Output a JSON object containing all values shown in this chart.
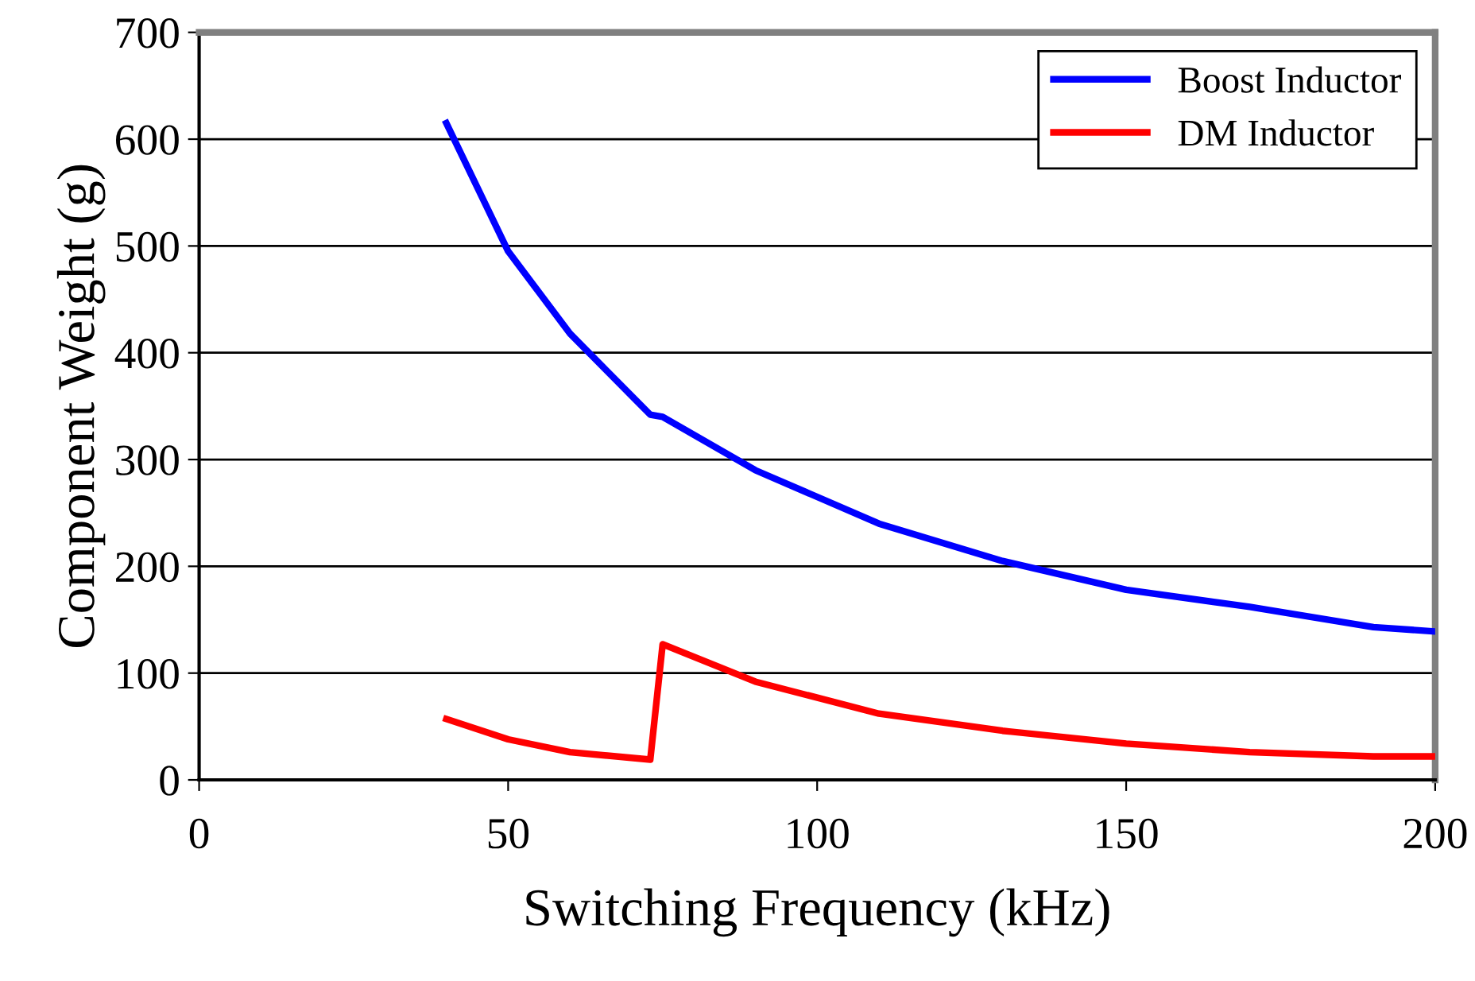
{
  "chart_data": {
    "type": "line",
    "xlabel": "Switching Frequency (kHz)",
    "ylabel": "Component Weight (g)",
    "xlim": [
      0,
      200
    ],
    "xticks": [
      0,
      50,
      100,
      150,
      200
    ],
    "ylim": [
      0,
      700
    ],
    "yticks": [
      0,
      100,
      200,
      300,
      400,
      500,
      600,
      700
    ],
    "grid": "y",
    "legend": "top right",
    "marker": "none",
    "line_style": "solid",
    "series": [
      {
        "name": "Boost Inductor",
        "color": "#0000ff",
        "x": [
          40,
          50,
          60,
          73,
          75,
          90,
          110,
          130,
          150,
          170,
          190,
          200
        ],
        "values": [
          615,
          495,
          418,
          342,
          340,
          290,
          240,
          205,
          178,
          162,
          143,
          139
        ]
      },
      {
        "name": "DM Inductor",
        "color": "#ff0000",
        "x": [
          40,
          50,
          60,
          73,
          75,
          90,
          110,
          130,
          150,
          170,
          190,
          200
        ],
        "values": [
          57,
          38,
          26,
          19,
          127,
          92,
          62,
          46,
          34,
          26,
          22,
          22
        ]
      }
    ]
  }
}
